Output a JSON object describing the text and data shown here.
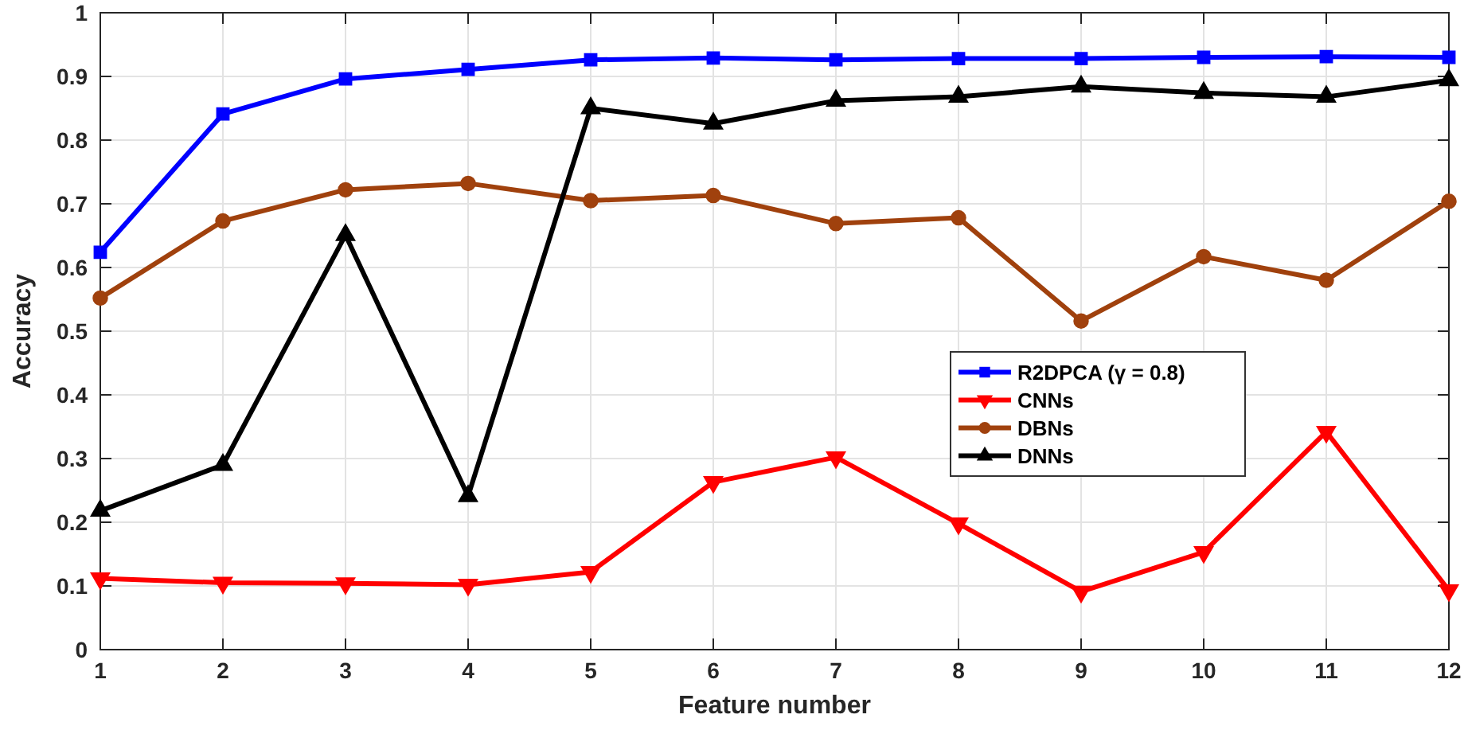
{
  "chart_data": {
    "type": "line",
    "xlabel": "Feature number",
    "ylabel": "Accuracy",
    "x": [
      1,
      2,
      3,
      4,
      5,
      6,
      7,
      8,
      9,
      10,
      11,
      12
    ],
    "xlim": [
      1,
      12
    ],
    "xticks": [
      1,
      2,
      3,
      4,
      5,
      6,
      7,
      8,
      9,
      10,
      11,
      12
    ],
    "ylim": [
      0,
      1
    ],
    "yticks": [
      0,
      0.1,
      0.2,
      0.3,
      0.4,
      0.5,
      0.6,
      0.7,
      0.8,
      0.9,
      1
    ],
    "grid": true,
    "legend": "right",
    "line_style": "solid",
    "series": [
      {
        "name": "R2DPCA (γ = 0.8)",
        "color": "#0000ff",
        "marker": "square",
        "values": [
          0.624,
          0.841,
          0.896,
          0.911,
          0.926,
          0.929,
          0.926,
          0.928,
          0.928,
          0.93,
          0.931,
          0.93
        ]
      },
      {
        "name": "CNNs",
        "color": "#ff0000",
        "marker": "triangle-down",
        "values": [
          0.112,
          0.105,
          0.104,
          0.102,
          0.122,
          0.263,
          0.302,
          0.198,
          0.091,
          0.153,
          0.342,
          0.093
        ]
      },
      {
        "name": "DBNs",
        "color": "#a0410d",
        "marker": "circle",
        "values": [
          0.552,
          0.673,
          0.722,
          0.732,
          0.705,
          0.713,
          0.669,
          0.678,
          0.516,
          0.617,
          0.58,
          0.704
        ]
      },
      {
        "name": "DNNs",
        "color": "#000000",
        "marker": "triangle",
        "values": [
          0.218,
          0.29,
          0.651,
          0.241,
          0.85,
          0.826,
          0.862,
          0.868,
          0.884,
          0.874,
          0.868,
          0.894
        ]
      }
    ]
  }
}
